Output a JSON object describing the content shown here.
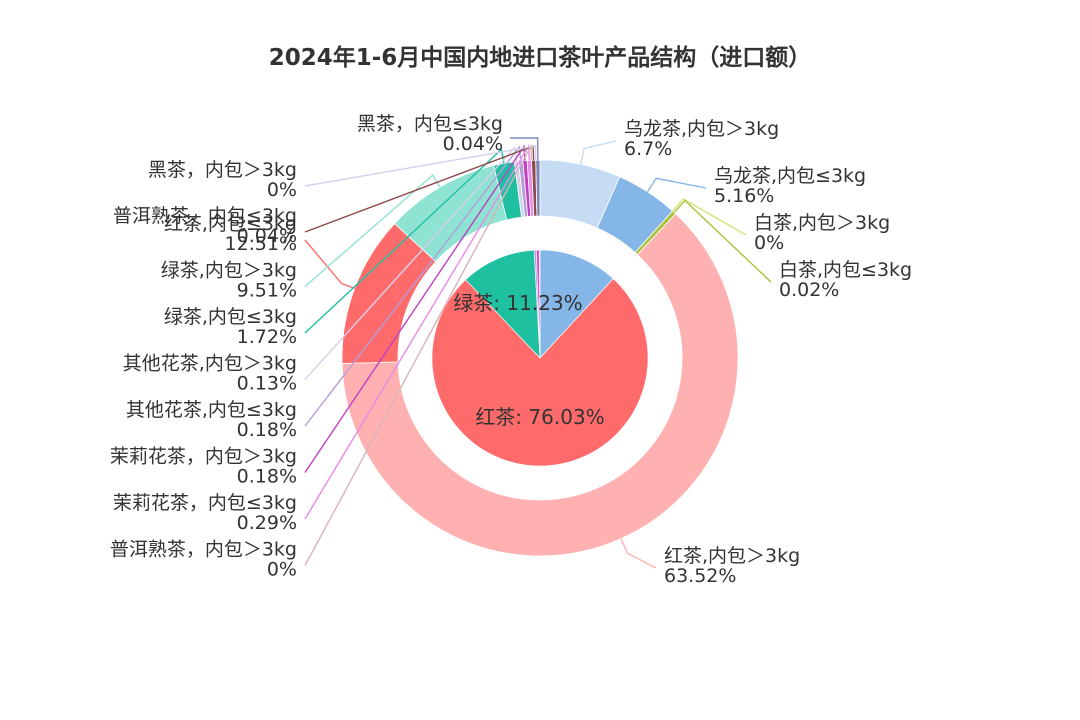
{
  "chart_data": {
    "type": "pie",
    "title": "2024年1-6月中国内地进口茶叶产品结构（进口额）",
    "inner_series": [
      {
        "name": "乌龙茶",
        "value": 11.86,
        "color": "#85b6e8"
      },
      {
        "name": "白茶",
        "value": 0.02,
        "color": "#d5e37a"
      },
      {
        "name": "红茶",
        "value": 76.03,
        "label": "红茶: 76.03%",
        "color": "#ff6b6b"
      },
      {
        "name": "绿茶",
        "value": 11.23,
        "label": "绿茶: 11.23%",
        "color": "#1fc0a0"
      },
      {
        "name": "其他花茶",
        "value": 0.31,
        "color": "#b39ddb"
      },
      {
        "name": "茉莉花茶",
        "value": 0.47,
        "color": "#d84fd8"
      },
      {
        "name": "普洱熟茶",
        "value": 0.04,
        "color": "#8d4a4a"
      },
      {
        "name": "黑茶",
        "value": 0.04,
        "color": "#a7b1d6"
      }
    ],
    "outer_series": [
      {
        "name": "乌龙茶,内包＞3kg",
        "value_label": "6.7%",
        "value": 6.7,
        "color": "#c5dcf4",
        "label_side": "right"
      },
      {
        "name": "乌龙茶,内包≤3kg",
        "value_label": "5.16%",
        "value": 5.16,
        "color": "#85b6e8",
        "label_side": "right"
      },
      {
        "name": "白茶,内包＞3kg",
        "value_label": "0%",
        "value": 0,
        "color": "#d5e37a",
        "label_side": "right"
      },
      {
        "name": "白茶,内包≤3kg",
        "value_label": "0.02%",
        "value": 0.02,
        "color": "#a9c23b",
        "label_side": "right"
      },
      {
        "name": "红茶,内包＞3kg",
        "value_label": "63.52%",
        "value": 63.52,
        "color": "#ffb1b1",
        "label_side": "right"
      },
      {
        "name": "红茶,内包≤3kg",
        "value_label": "12.51%",
        "value": 12.51,
        "color": "#ff6b6b",
        "label_side": "left"
      },
      {
        "name": "绿茶,内包＞3kg",
        "value_label": "9.51%",
        "value": 9.51,
        "color": "#8fe3d2",
        "label_side": "left"
      },
      {
        "name": "绿茶,内包≤3kg",
        "value_label": "1.72%",
        "value": 1.72,
        "color": "#1fc0a0",
        "label_side": "left"
      },
      {
        "name": "其他花茶,内包＞3kg",
        "value_label": "0.13%",
        "value": 0.13,
        "color": "#d6d0ea",
        "label_side": "left"
      },
      {
        "name": "其他花茶,内包≤3kg",
        "value_label": "0.18%",
        "value": 0.18,
        "color": "#b39ddb",
        "label_side": "left"
      },
      {
        "name": "茉莉花茶，内包＞3kg",
        "value_label": "0.18%",
        "value": 0.18,
        "color": "#c23fc2",
        "label_side": "left"
      },
      {
        "name": "茉莉花茶，内包≤3kg",
        "value_label": "0.29%",
        "value": 0.29,
        "color": "#e98ae9",
        "label_side": "left"
      },
      {
        "name": "普洱熟茶，内包＞3kg",
        "value_label": "0%",
        "value": 0,
        "color": "#d9b3b8",
        "label_side": "left"
      },
      {
        "name": "普洱熟茶，内包≤3kg",
        "value_label": "0.04%",
        "value": 0.04,
        "color": "#8d4a4a",
        "label_side": "left"
      },
      {
        "name": "黑茶，内包＞3kg",
        "value_label": "0%",
        "value": 0,
        "color": "#d0d2e8",
        "label_side": "left"
      },
      {
        "name": "黑茶，内包≤3kg",
        "value_label": "0.04%",
        "value": 0.04,
        "color": "#7f88b8",
        "label_side": "top"
      }
    ]
  }
}
